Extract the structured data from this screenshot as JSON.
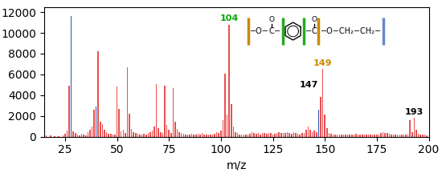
{
  "chart_data": {
    "type": "bar",
    "xlabel": "m/z",
    "xlim": [
      15,
      200
    ],
    "xticks": [
      25,
      50,
      75,
      100,
      125,
      150,
      175,
      200
    ],
    "ylim": [
      0,
      12500
    ],
    "yticks": [
      0,
      2000,
      4000,
      6000,
      8000,
      10000,
      12000
    ],
    "series": [
      {
        "color": "#e85050",
        "x": [
          16,
          18,
          20,
          22,
          24,
          25,
          26,
          27,
          29,
          30,
          31,
          32,
          33,
          34,
          35,
          36,
          37,
          38,
          39,
          41,
          42,
          43,
          44,
          45,
          46,
          47,
          48,
          49,
          50,
          51,
          52,
          53,
          54,
          55,
          56,
          57,
          58,
          59,
          60,
          61,
          62,
          63,
          64,
          65,
          66,
          67,
          68,
          69,
          70,
          71,
          72,
          73,
          74,
          75,
          76,
          77,
          78,
          79,
          80,
          81,
          82,
          83,
          84,
          85,
          86,
          87,
          88,
          89,
          90,
          91,
          92,
          93,
          94,
          95,
          96,
          97,
          98,
          99,
          100,
          101,
          102,
          103,
          104,
          105,
          106,
          107,
          108,
          109,
          110,
          111,
          112,
          113,
          114,
          115,
          116,
          117,
          118,
          119,
          120,
          121,
          122,
          123,
          124,
          125,
          126,
          127,
          128,
          129,
          130,
          131,
          132,
          133,
          134,
          135,
          136,
          137,
          138,
          139,
          140,
          141,
          142,
          143,
          144,
          145,
          146,
          148,
          149,
          150,
          151,
          152,
          153,
          154,
          155,
          156,
          157,
          158,
          159,
          160,
          161,
          162,
          163,
          164,
          165,
          166,
          167,
          168,
          169,
          170,
          171,
          172,
          173,
          174,
          175,
          176,
          177,
          178,
          179,
          180,
          181,
          182,
          183,
          184,
          185,
          186,
          187,
          188,
          189,
          190,
          191,
          192,
          193,
          194,
          195,
          196,
          197,
          198,
          199
        ],
        "values": [
          150,
          100,
          80,
          80,
          100,
          250,
          600,
          4900,
          550,
          350,
          220,
          160,
          300,
          180,
          130,
          450,
          650,
          1000,
          2600,
          8200,
          1400,
          1200,
          650,
          450,
          300,
          250,
          200,
          180,
          4800,
          2700,
          550,
          650,
          380,
          6700,
          2200,
          750,
          450,
          370,
          280,
          230,
          170,
          280,
          230,
          330,
          470,
          570,
          950,
          5100,
          850,
          470,
          330,
          4900,
          1150,
          650,
          380,
          4700,
          1400,
          750,
          470,
          330,
          280,
          190,
          230,
          190,
          280,
          230,
          190,
          280,
          230,
          330,
          230,
          190,
          170,
          190,
          230,
          280,
          470,
          380,
          570,
          1600,
          6100,
          2100,
          10800,
          3100,
          950,
          470,
          330,
          230,
          190,
          170,
          190,
          230,
          280,
          470,
          380,
          280,
          330,
          230,
          330,
          330,
          280,
          380,
          330,
          230,
          280,
          380,
          470,
          380,
          330,
          330,
          470,
          380,
          280,
          470,
          380,
          280,
          230,
          330,
          380,
          650,
          950,
          650,
          470,
          570,
          470,
          3800,
          6500,
          2100,
          850,
          380,
          280,
          230,
          190,
          230,
          190,
          170,
          190,
          230,
          190,
          190,
          230,
          190,
          280,
          230,
          190,
          190,
          230,
          190,
          230,
          190,
          190,
          230,
          190,
          230,
          330,
          470,
          380,
          330,
          280,
          230,
          190,
          170,
          190,
          190,
          230,
          190,
          230,
          190,
          1600,
          470,
          1800,
          650,
          280,
          230,
          190,
          170,
          140
        ]
      },
      {
        "color": "#3355aa",
        "x": [
          28,
          40,
          147,
          193
        ],
        "values": [
          11600,
          2900,
          2600,
          120
        ]
      }
    ],
    "annotations": [
      {
        "x": 104,
        "y": 10800,
        "text": "104",
        "color": "#00aa00"
      },
      {
        "x": 149,
        "y": 6500,
        "text": "149",
        "color": "#cc8800"
      },
      {
        "x": 147,
        "y": 4400,
        "text": "147",
        "color": "#000000"
      },
      {
        "x": 193,
        "y": 1800,
        "text": "193",
        "color": "#000000"
      }
    ],
    "structure": {
      "parts": [
        {
          "kind": "bar",
          "color": "#cc8800"
        },
        {
          "kind": "text",
          "text": "−O−"
        },
        {
          "kind": "carbonyl",
          "text": "C",
          "top": "O"
        },
        {
          "kind": "text",
          "text": "−"
        },
        {
          "kind": "bar",
          "color": "#22aa22"
        },
        {
          "kind": "ring"
        },
        {
          "kind": "bar",
          "color": "#22aa22"
        },
        {
          "kind": "text",
          "text": "−"
        },
        {
          "kind": "carbonyl",
          "text": "C",
          "top": "O"
        },
        {
          "kind": "bar",
          "color": "#cc8800"
        },
        {
          "kind": "text",
          "text": "−O−CH₂−CH₂−"
        },
        {
          "kind": "bar",
          "color": "#6688cc"
        }
      ]
    }
  }
}
